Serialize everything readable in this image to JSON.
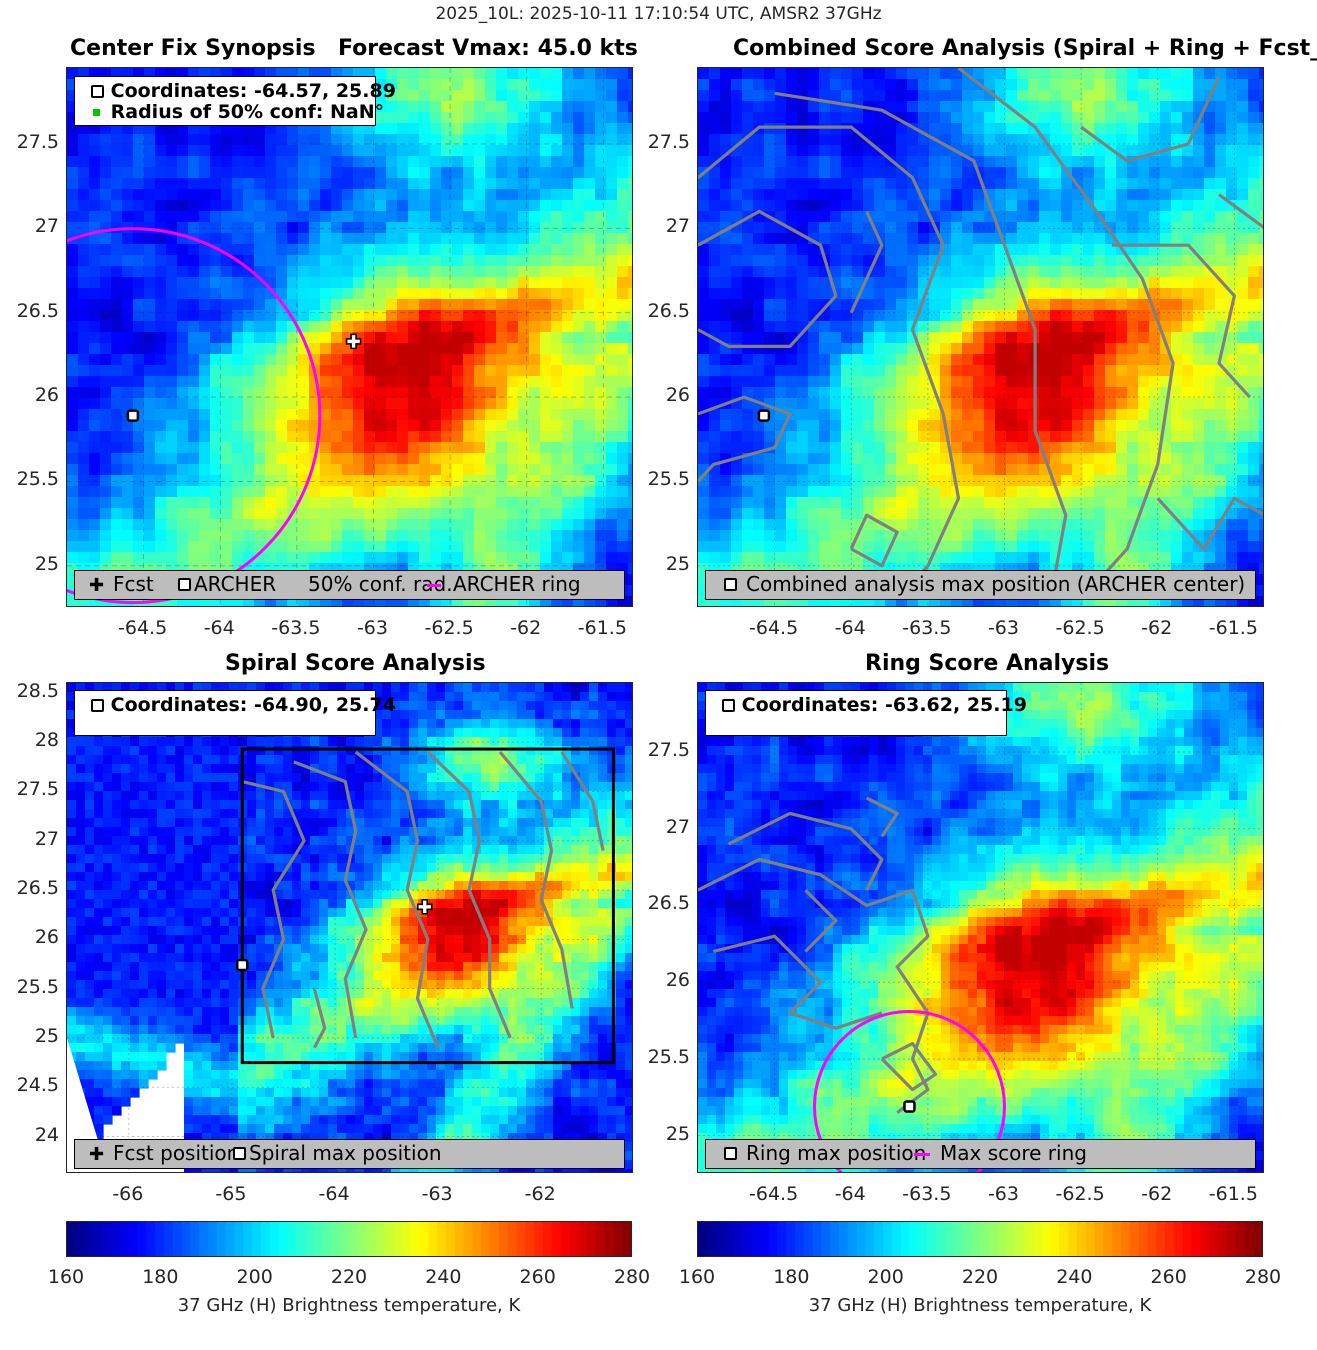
{
  "figure": {
    "suptitle": "2025_10L: 2025-10-11 17:10:54 UTC, AMSR2 37GHz"
  },
  "panels": {
    "center_fix": {
      "title_left": "Center Fix Synopsis",
      "title_right": "Forecast Vmax: 45.0 kts",
      "info_line1": "Coordinates: -64.57, 25.89",
      "info_line2": "Radius of 50% conf: NaN°",
      "legend": {
        "fcst": "Fcst",
        "archer": "ARCHER",
        "conf": "50% conf. rad.",
        "ring": "ARCHER ring"
      }
    },
    "combined": {
      "title": "Combined Score Analysis (Spiral + Ring + Fcst_Pe",
      "legend": "Combined analysis max position (ARCHER center)"
    },
    "spiral": {
      "title": "Spiral Score Analysis",
      "info_line1": "Coordinates: -64.90, 25.74",
      "legend": {
        "fcst": "Fcst position",
        "max": "Spiral max position"
      }
    },
    "ring": {
      "title": "Ring Score Analysis",
      "info_line1": "Coordinates: -63.62, 25.19",
      "legend": {
        "max": "Ring max position",
        "ring": "Max score ring"
      }
    }
  },
  "colorbar": {
    "label": "37 GHz (H) Brightness temperature, K",
    "ticks": [
      "160",
      "180",
      "200",
      "220",
      "240",
      "260",
      "280"
    ],
    "range": [
      160,
      280
    ],
    "colormap": "jet"
  },
  "chart_data": [
    {
      "type": "heatmap",
      "title": "Center Fix Synopsis",
      "xlim": [
        -65.0,
        -61.3
      ],
      "ylim": [
        24.75,
        27.95
      ],
      "xticks": [
        "-64.5",
        "-64",
        "-63.5",
        "-63",
        "-62.5",
        "-62",
        "-61.5"
      ],
      "yticks": [
        "25",
        "25.5",
        "26",
        "26.5",
        "27",
        "27.5"
      ],
      "archer_center": [
        -64.57,
        25.89
      ],
      "forecast_position": [
        -63.13,
        26.33
      ],
      "archer_ring_color": "#ff00ff",
      "colorbar_range": [
        160,
        280
      ]
    },
    {
      "type": "heatmap",
      "title": "Combined Score Analysis (Spiral + Ring + Fcst_Pe",
      "xlim": [
        -65.0,
        -61.3
      ],
      "ylim": [
        24.75,
        27.95
      ],
      "xticks": [
        "-64.5",
        "-64",
        "-63.5",
        "-63",
        "-62.5",
        "-62",
        "-61.5"
      ],
      "yticks": [
        "25",
        "25.5",
        "26",
        "26.5",
        "27",
        "27.5"
      ],
      "max_position": [
        -64.57,
        25.89
      ],
      "contour_color": "#808080"
    },
    {
      "type": "heatmap",
      "title": "Spiral Score Analysis",
      "xlim": [
        -66.6,
        -61.1
      ],
      "ylim": [
        23.62,
        28.6
      ],
      "xticks": [
        "-66",
        "-65",
        "-64",
        "-63",
        "-62"
      ],
      "yticks": [
        "24",
        "24.5",
        "25",
        "25.5",
        "26",
        "26.5",
        "27",
        "27.5",
        "28",
        "28.5"
      ],
      "spiral_max_position": [
        -64.9,
        25.74
      ],
      "forecast_position": [
        -63.13,
        26.33
      ],
      "search_box": {
        "x": [
          -64.9,
          -61.3
        ],
        "y": [
          24.75,
          27.93
        ]
      }
    },
    {
      "type": "heatmap",
      "title": "Ring Score Analysis",
      "xlim": [
        -65.0,
        -61.3
      ],
      "ylim": [
        24.75,
        27.95
      ],
      "xticks": [
        "-64.5",
        "-64",
        "-63.5",
        "-63",
        "-62.5",
        "-62",
        "-61.5"
      ],
      "yticks": [
        "25",
        "25.5",
        "26",
        "26.5",
        "27",
        "27.5"
      ],
      "ring_max_position": [
        -63.62,
        25.19
      ],
      "max_score_ring_color": "#ff00ff"
    }
  ]
}
